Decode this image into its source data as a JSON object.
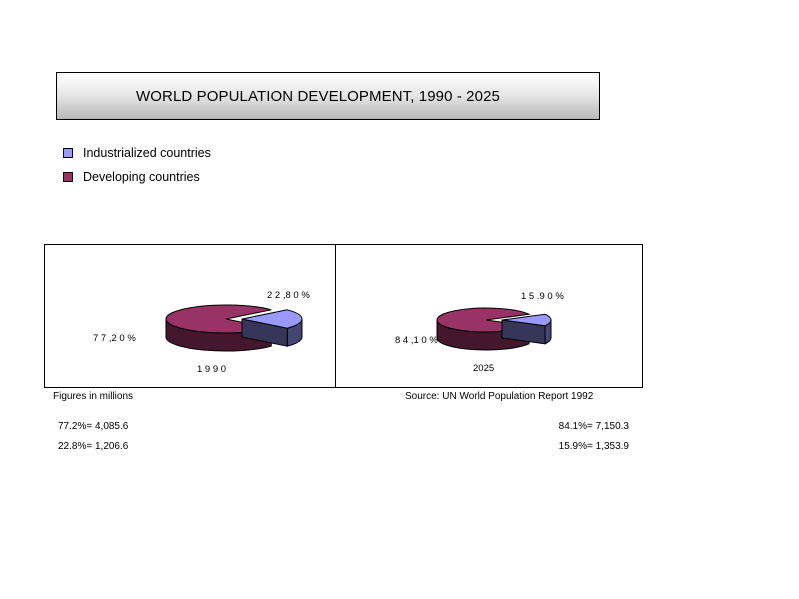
{
  "title": "WORLD POPULATION DEVELOPMENT, 1990 - 2025",
  "legend": [
    {
      "label": "Industrialized countries",
      "color": "#9999ff"
    },
    {
      "label": "Developing countries",
      "color": "#993366"
    }
  ],
  "chart_data": [
    {
      "type": "pie",
      "categories": [
        "Industrialized countries",
        "Developing countries"
      ],
      "values": [
        22.8,
        77.2
      ],
      "data_labels": [
        "2 2 ,8 0 %",
        "7 7 ,2 0 %"
      ],
      "xlabel": "1 9 9 0"
    },
    {
      "type": "pie",
      "categories": [
        "Industrialized countries",
        "Developing countries"
      ],
      "values": [
        15.9,
        84.1
      ],
      "data_labels": [
        "1 5 .9 0 %",
        "8 4 ,1 0 %"
      ],
      "xlabel": "2025"
    }
  ],
  "notes": {
    "left_caption": "Figures in millions",
    "right_caption": "Source: UN World Population Report 1992",
    "left_line1": "77.2%= 4,085.6",
    "left_line2": "22.8%= 1,206.6",
    "right_line1": "84.1%= 7,150.3",
    "right_line2": "15.9%= 1,353.9"
  }
}
